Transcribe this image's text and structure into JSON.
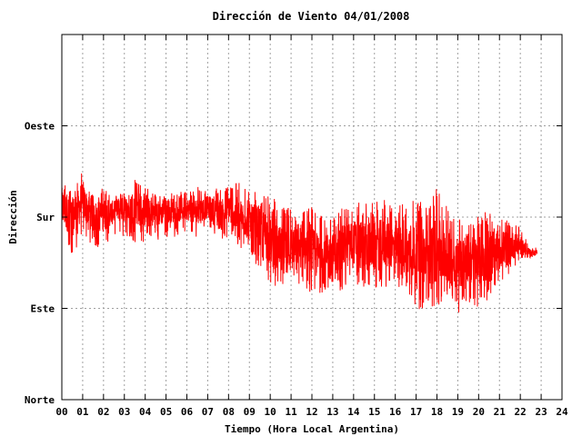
{
  "chart_data": {
    "type": "line",
    "title": "Dirección de Viento 04/01/2008",
    "xlabel": "Tiempo (Hora Local Argentina)",
    "ylabel": "Dirección",
    "xlim": [
      0,
      24
    ],
    "ylim": [
      0,
      360
    ],
    "x_ticks": [
      "00",
      "01",
      "02",
      "03",
      "04",
      "05",
      "06",
      "07",
      "08",
      "09",
      "10",
      "11",
      "12",
      "13",
      "14",
      "15",
      "16",
      "17",
      "18",
      "19",
      "20",
      "21",
      "22",
      "23",
      "24"
    ],
    "y_ticks": [
      {
        "value": 0,
        "label": "Norte"
      },
      {
        "value": 90,
        "label": "Este"
      },
      {
        "value": 180,
        "label": "Sur"
      },
      {
        "value": 270,
        "label": "Oeste"
      }
    ],
    "grid": true,
    "series": [
      {
        "color": "#ff0000",
        "envelope_x": [
          0,
          0.5,
          1,
          1.5,
          2,
          2.5,
          3,
          3.5,
          4,
          4.5,
          5,
          5.5,
          6,
          6.5,
          7,
          7.5,
          8,
          8.5,
          9,
          9.5,
          10,
          10.5,
          11,
          11.5,
          12,
          12.5,
          13,
          13.5,
          14,
          14.5,
          15,
          15.5,
          16,
          16.5,
          17,
          17.5,
          18,
          18.5,
          19,
          19.5,
          20,
          20.5,
          21,
          21.5,
          22,
          22.5,
          22.8
        ],
        "envelope_low": [
          150,
          140,
          160,
          150,
          150,
          160,
          160,
          155,
          155,
          155,
          160,
          160,
          165,
          160,
          165,
          155,
          160,
          150,
          140,
          130,
          115,
          105,
          120,
          110,
          100,
          105,
          95,
          110,
          115,
          105,
          105,
          110,
          115,
          100,
          90,
          85,
          90,
          95,
          85,
          95,
          90,
          100,
          115,
          125,
          135,
          140,
          140
        ],
        "envelope_high": [
          220,
          210,
          225,
          205,
          210,
          200,
          205,
          220,
          210,
          205,
          200,
          210,
          205,
          210,
          205,
          210,
          220,
          215,
          205,
          210,
          200,
          195,
          190,
          185,
          190,
          180,
          185,
          190,
          195,
          200,
          195,
          200,
          190,
          195,
          200,
          190,
          210,
          190,
          180,
          185,
          180,
          190,
          185,
          180,
          170,
          150,
          150
        ],
        "typical": [
          190,
          180,
          195,
          180,
          182,
          185,
          188,
          190,
          185,
          183,
          185,
          188,
          188,
          185,
          190,
          182,
          190,
          180,
          175,
          170,
          155,
          145,
          152,
          150,
          145,
          140,
          140,
          150,
          155,
          152,
          150,
          155,
          150,
          148,
          145,
          140,
          148,
          140,
          135,
          140,
          135,
          145,
          148,
          152,
          152,
          145,
          145
        ]
      }
    ]
  }
}
